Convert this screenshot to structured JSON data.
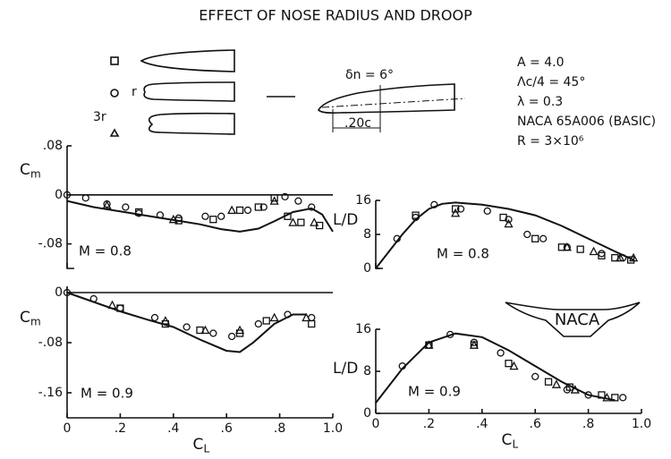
{
  "title": "EFFECT OF NOSE RADIUS AND DROOP",
  "legend": {
    "circle": "r",
    "triangle": "3r"
  },
  "sketch": {
    "droop": "δn = 6°",
    "chord": ".20c"
  },
  "params": [
    "A = 4.0",
    "Λc/4 = 45°",
    "λ = 0.3",
    "NACA 65A006 (BASIC)",
    "R = 3×10⁶"
  ],
  "logo": "NACA",
  "chart_data": [
    {
      "type": "scatter",
      "ylabel": "C",
      "ylabel_sub": "m",
      "annotation": "M = 0.8",
      "zero_line": true,
      "xlim": [
        0,
        1
      ],
      "ylim": [
        -0.12,
        0.08
      ],
      "yticks": [
        {
          "value": 0.08,
          "label": ".08"
        },
        0,
        {
          "value": -0.08,
          "label": "-.08"
        }
      ],
      "series": [
        {
          "kind": "line",
          "color": "#111",
          "x": [
            0,
            0.1,
            0.2,
            0.3,
            0.4,
            0.5,
            0.58,
            0.65,
            0.72,
            0.78,
            0.85,
            0.92,
            0.96,
            1.0
          ],
          "values": [
            -0.01,
            -0.02,
            -0.027,
            -0.034,
            -0.041,
            -0.048,
            -0.056,
            -0.06,
            -0.055,
            -0.043,
            -0.028,
            -0.022,
            -0.032,
            -0.06
          ]
        },
        {
          "kind": "marker",
          "marker": "circle",
          "name": "r",
          "color": "#111",
          "x": [
            0,
            0.07,
            0.15,
            0.22,
            0.27,
            0.35,
            0.42,
            0.52,
            0.58,
            0.68,
            0.74,
            0.82,
            0.87,
            0.92
          ],
          "values": [
            0,
            -0.005,
            -0.015,
            -0.02,
            -0.03,
            -0.033,
            -0.038,
            -0.035,
            -0.035,
            -0.025,
            -0.02,
            -0.003,
            -0.01,
            -0.02
          ]
        },
        {
          "kind": "marker",
          "marker": "square",
          "color": "#111",
          "x": [
            0.27,
            0.42,
            0.55,
            0.65,
            0.72,
            0.78,
            0.83,
            0.88,
            0.95
          ],
          "values": [
            -0.028,
            -0.042,
            -0.04,
            -0.025,
            -0.02,
            -0.005,
            -0.035,
            -0.045,
            -0.05
          ]
        },
        {
          "kind": "marker",
          "marker": "triangle",
          "name": "3r",
          "color": "#111",
          "x": [
            0.15,
            0.4,
            0.62,
            0.78,
            0.85,
            0.93
          ],
          "values": [
            -0.017,
            -0.04,
            -0.025,
            -0.01,
            -0.045,
            -0.045
          ]
        }
      ]
    },
    {
      "type": "scatter",
      "ylabel": "L/D",
      "annotation": "M = 0.8",
      "xlim": [
        0,
        1
      ],
      "ylim": [
        0,
        16
      ],
      "yticks": [
        0,
        8,
        16
      ],
      "series": [
        {
          "kind": "line",
          "color": "#111",
          "x": [
            0,
            0.05,
            0.1,
            0.15,
            0.2,
            0.25,
            0.3,
            0.4,
            0.5,
            0.6,
            0.7,
            0.8,
            0.9,
            0.97
          ],
          "values": [
            0,
            4,
            8,
            11.5,
            14,
            15.2,
            15.5,
            15,
            14,
            12.5,
            10,
            7,
            4,
            2
          ]
        },
        {
          "kind": "marker",
          "marker": "circle",
          "name": "r",
          "color": "#111",
          "x": [
            0.08,
            0.15,
            0.22,
            0.32,
            0.42,
            0.5,
            0.57,
            0.63,
            0.72,
            0.85,
            0.93
          ],
          "values": [
            7,
            12,
            15,
            14,
            13.5,
            11.5,
            8,
            7,
            5,
            3.5,
            2.5
          ]
        },
        {
          "kind": "marker",
          "marker": "square",
          "color": "#111",
          "x": [
            0.15,
            0.3,
            0.48,
            0.6,
            0.7,
            0.77,
            0.85,
            0.9,
            0.96
          ],
          "values": [
            12.5,
            14,
            12,
            7,
            5,
            4.5,
            3,
            2.5,
            2
          ]
        },
        {
          "kind": "marker",
          "marker": "triangle",
          "name": "3r",
          "color": "#111",
          "x": [
            0.3,
            0.5,
            0.72,
            0.82,
            0.92,
            0.97
          ],
          "values": [
            13,
            10.5,
            5,
            4,
            2.5,
            2.5
          ]
        }
      ]
    },
    {
      "type": "scatter",
      "ylabel": "C",
      "ylabel_sub": "m",
      "annotation": "M = 0.9",
      "zero_line": true,
      "xlabel": "C",
      "xlabel_sub": "L",
      "xlim": [
        0,
        1
      ],
      "ylim": [
        -0.2,
        0.01
      ],
      "xticks": [
        0,
        {
          "value": 0.2,
          "label": ".2"
        },
        {
          "value": 0.4,
          "label": ".4"
        },
        {
          "value": 0.6,
          "label": ".6"
        },
        {
          "value": 0.8,
          "label": ".8"
        },
        {
          "value": 1,
          "label": "1.0"
        }
      ],
      "yticks": [
        0,
        {
          "value": -0.08,
          "label": "-.08"
        },
        {
          "value": -0.16,
          "label": "-.16"
        }
      ],
      "series": [
        {
          "kind": "line",
          "color": "#111",
          "x": [
            0,
            0.1,
            0.2,
            0.3,
            0.4,
            0.5,
            0.6,
            0.65,
            0.7,
            0.78,
            0.85,
            0.9
          ],
          "values": [
            0,
            -0.015,
            -0.03,
            -0.043,
            -0.055,
            -0.075,
            -0.093,
            -0.095,
            -0.08,
            -0.05,
            -0.035,
            -0.035
          ]
        },
        {
          "kind": "marker",
          "marker": "circle",
          "name": "r",
          "color": "#111",
          "x": [
            0,
            0.1,
            0.2,
            0.33,
            0.45,
            0.55,
            0.62,
            0.72,
            0.83,
            0.92
          ],
          "values": [
            0,
            -0.01,
            -0.025,
            -0.04,
            -0.055,
            -0.065,
            -0.07,
            -0.05,
            -0.035,
            -0.04
          ]
        },
        {
          "kind": "marker",
          "marker": "square",
          "color": "#111",
          "x": [
            0.2,
            0.37,
            0.5,
            0.65,
            0.75,
            0.92
          ],
          "values": [
            -0.025,
            -0.05,
            -0.06,
            -0.065,
            -0.045,
            -0.05
          ]
        },
        {
          "kind": "marker",
          "marker": "triangle",
          "name": "3r",
          "color": "#111",
          "x": [
            0.17,
            0.37,
            0.52,
            0.65,
            0.78,
            0.9
          ],
          "values": [
            -0.02,
            -0.045,
            -0.06,
            -0.06,
            -0.04,
            -0.04
          ]
        }
      ]
    },
    {
      "type": "scatter",
      "ylabel": "L/D",
      "annotation": "M = 0.9",
      "xlabel": "C",
      "xlabel_sub": "L",
      "xlim": [
        0,
        1
      ],
      "ylim": [
        0,
        16
      ],
      "xticks": [
        0,
        {
          "value": 0.2,
          "label": ".2"
        },
        {
          "value": 0.4,
          "label": ".4"
        },
        {
          "value": 0.6,
          "label": ".6"
        },
        {
          "value": 0.8,
          "label": ".8"
        },
        {
          "value": 1,
          "label": "1.0"
        }
      ],
      "yticks": [
        0,
        8,
        16
      ],
      "series": [
        {
          "kind": "line",
          "color": "#111",
          "x": [
            0,
            0.1,
            0.2,
            0.3,
            0.4,
            0.5,
            0.6,
            0.7,
            0.8,
            0.9
          ],
          "values": [
            2,
            8.5,
            13.5,
            15.2,
            14.5,
            12,
            9,
            6,
            3.5,
            2.5
          ]
        },
        {
          "kind": "marker",
          "marker": "circle",
          "name": "r",
          "color": "#111",
          "x": [
            0.1,
            0.2,
            0.28,
            0.37,
            0.47,
            0.6,
            0.72,
            0.8,
            0.93
          ],
          "values": [
            9,
            13,
            15,
            13.5,
            11.5,
            7,
            4.5,
            3.5,
            3
          ]
        },
        {
          "kind": "marker",
          "marker": "square",
          "color": "#111",
          "x": [
            0.2,
            0.37,
            0.5,
            0.65,
            0.73,
            0.85,
            0.9
          ],
          "values": [
            13,
            13,
            9.5,
            6,
            5,
            3.5,
            3
          ]
        },
        {
          "kind": "marker",
          "marker": "triangle",
          "name": "3r",
          "color": "#111",
          "x": [
            0.2,
            0.37,
            0.52,
            0.68,
            0.75,
            0.87
          ],
          "values": [
            13,
            13,
            9,
            5.5,
            4.5,
            3
          ]
        }
      ]
    }
  ]
}
